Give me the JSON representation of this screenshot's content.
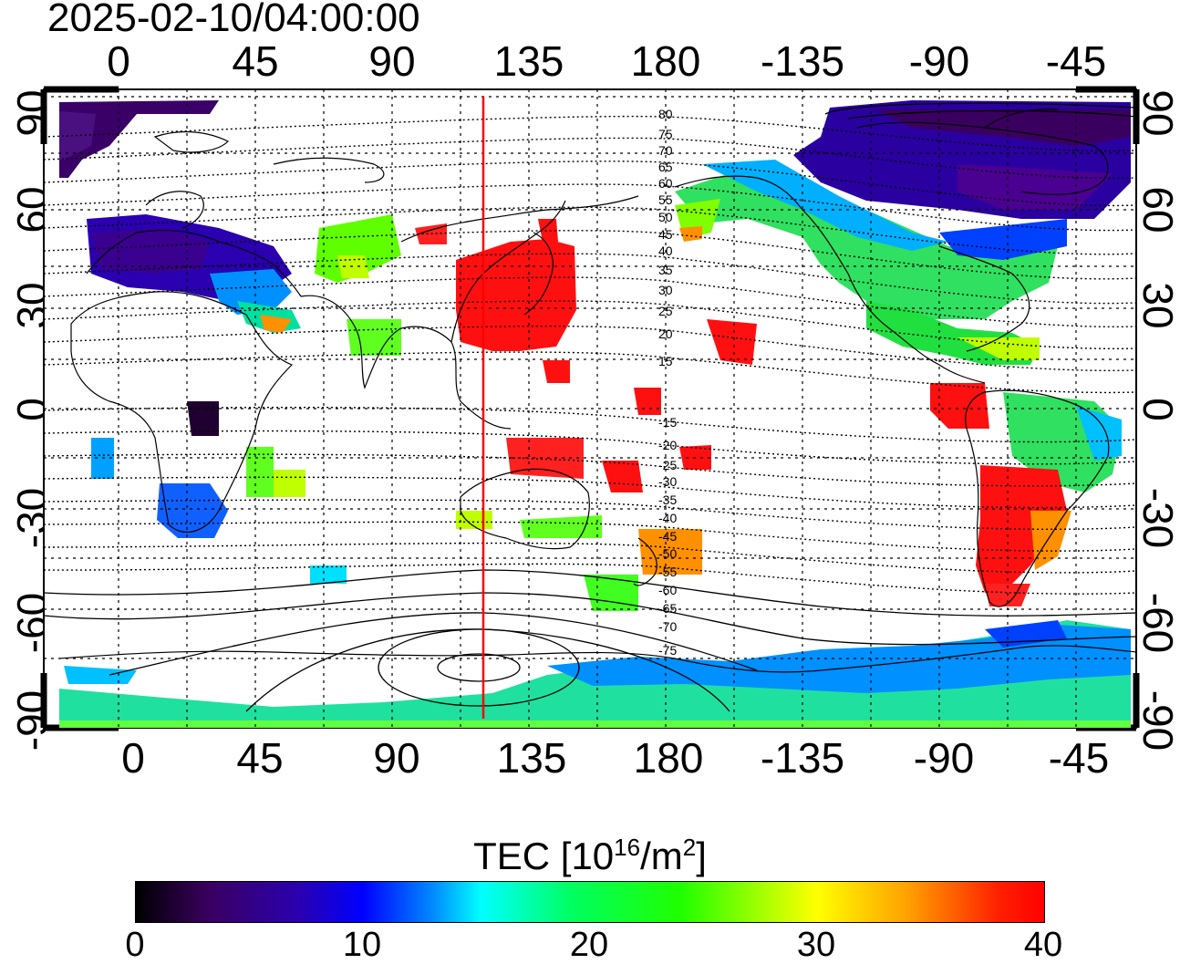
{
  "title": "2025-02-10/04:00:00",
  "longitude_ticks": [
    "0",
    "45",
    "90",
    "135",
    "180",
    "-135",
    "-90",
    "-45"
  ],
  "latitude_ticks": [
    "90",
    "60",
    "30",
    "0",
    "-30",
    "-60",
    "-90"
  ],
  "contour_labels_north": [
    "80",
    "75",
    "70",
    "65",
    "60",
    "55",
    "50",
    "45",
    "40",
    "35",
    "30",
    "25",
    "20",
    "15"
  ],
  "contour_labels_south": [
    "-15",
    "-20",
    "-25",
    "-30",
    "-35",
    "-40",
    "-45",
    "-50",
    "-55",
    "-60",
    "-65",
    "-70",
    "-75"
  ],
  "colorbar": {
    "title_main": "TEC  [10",
    "title_exp1": "16",
    "title_mid": "/m",
    "title_exp2": "2",
    "title_end": "]",
    "ticks": [
      "0",
      "10",
      "20",
      "30",
      "40"
    ],
    "min": 0,
    "max": 40
  },
  "colors": {
    "meridian_line": "#ff0000",
    "coastline": "#000000",
    "grid": "#000000"
  }
}
